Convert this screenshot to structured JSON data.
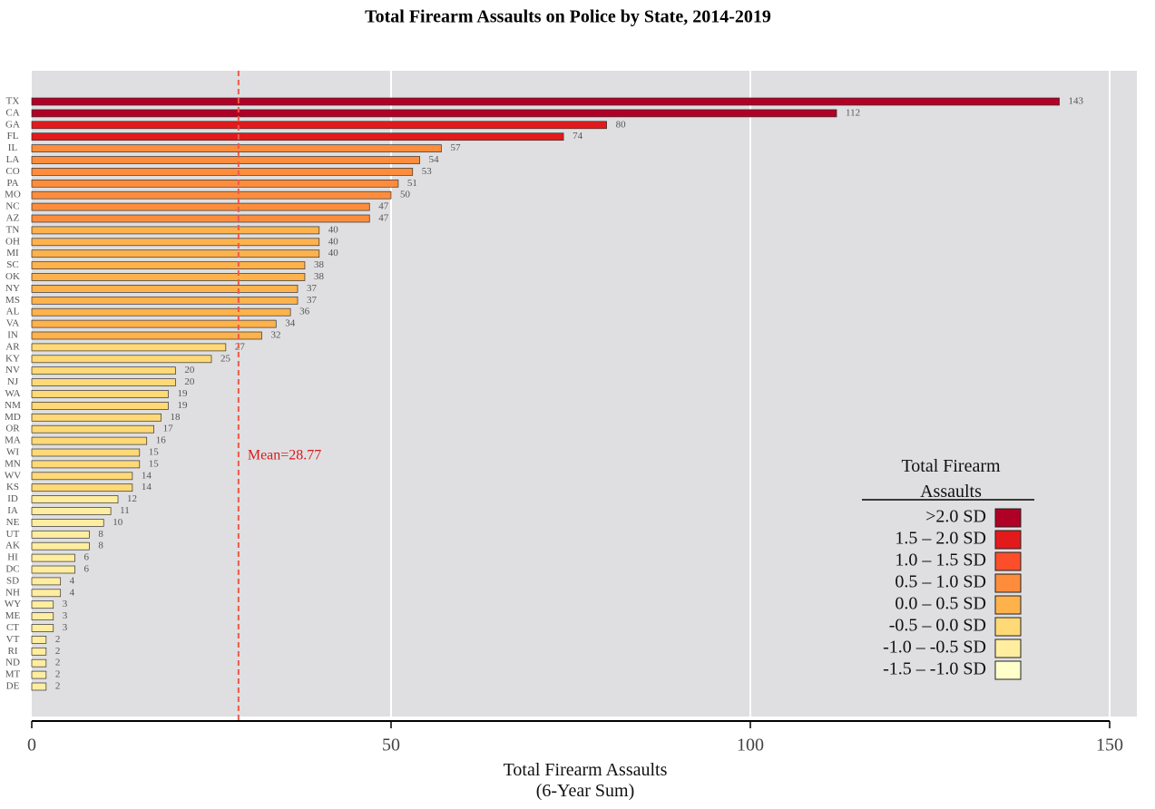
{
  "chart_data": {
    "type": "barh",
    "title": "Total Firearm Assaults on Police by State, 2014-2019",
    "xlabel": "Total Firearm Assaults\n(6-Year Sum)",
    "categories": [
      "TX",
      "CA",
      "GA",
      "FL",
      "IL",
      "LA",
      "CO",
      "PA",
      "MO",
      "NC",
      "AZ",
      "TN",
      "OH",
      "MI",
      "SC",
      "OK",
      "NY",
      "MS",
      "AL",
      "VA",
      "IN",
      "AR",
      "KY",
      "NV",
      "NJ",
      "WA",
      "NM",
      "MD",
      "OR",
      "MA",
      "WI",
      "MN",
      "WV",
      "KS",
      "ID",
      "IA",
      "NE",
      "UT",
      "AK",
      "HI",
      "DC",
      "SD",
      "NH",
      "WY",
      "ME",
      "CT",
      "VT",
      "RI",
      "ND",
      "MT",
      "DE"
    ],
    "values": [
      143,
      112,
      80,
      74,
      57,
      54,
      53,
      51,
      50,
      47,
      47,
      40,
      40,
      40,
      38,
      38,
      37,
      37,
      36,
      34,
      32,
      27,
      25,
      20,
      20,
      19,
      19,
      18,
      17,
      16,
      15,
      15,
      14,
      14,
      12,
      11,
      10,
      8,
      8,
      6,
      6,
      4,
      4,
      3,
      3,
      3,
      2,
      2,
      2,
      2,
      2
    ],
    "colors": [
      "#b10026",
      "#b10026",
      "#e31a1c",
      "#e31a1c",
      "#fd8d3c",
      "#fd8d3c",
      "#fd8d3c",
      "#fd8d3c",
      "#fd8d3c",
      "#fd8d3c",
      "#fd8d3c",
      "#feb24c",
      "#feb24c",
      "#feb24c",
      "#feb24c",
      "#feb24c",
      "#feb24c",
      "#feb24c",
      "#feb24c",
      "#feb24c",
      "#feb24c",
      "#fed976",
      "#fed976",
      "#fed976",
      "#fed976",
      "#fed976",
      "#fed976",
      "#fed976",
      "#fed976",
      "#fed976",
      "#fed976",
      "#fed976",
      "#fed976",
      "#fed976",
      "#ffeda0",
      "#ffeda0",
      "#ffeda0",
      "#ffeda0",
      "#ffeda0",
      "#ffeda0",
      "#ffeda0",
      "#ffeda0",
      "#ffeda0",
      "#ffeda0",
      "#ffeda0",
      "#ffeda0",
      "#ffeda0",
      "#ffeda0",
      "#ffeda0",
      "#ffeda0",
      "#ffeda0"
    ],
    "xlim": [
      0,
      150
    ],
    "xticks": [
      0,
      50,
      100,
      150
    ],
    "grid": true,
    "mean": 28.77,
    "annotation": "Mean=28.77",
    "legend": {
      "title": "Total Firearm\nAssaults",
      "position": "lower right",
      "items": [
        {
          "label": ">2.0 SD",
          "color": "#b10026"
        },
        {
          "label": "1.5 – 2.0 SD",
          "color": "#e31a1c"
        },
        {
          "label": "1.0 – 1.5 SD",
          "color": "#fc4e2a"
        },
        {
          "label": "0.5 – 1.0 SD",
          "color": "#fd8d3c"
        },
        {
          "label": "0.0 – 0.5 SD",
          "color": "#feb24c"
        },
        {
          "label": "-0.5 – 0.0 SD",
          "color": "#fed976"
        },
        {
          "label": "-1.0 – -0.5 SD",
          "color": "#ffeda0"
        },
        {
          "label": "-1.5 – -1.0 SD",
          "color": "#ffffcc"
        }
      ]
    }
  }
}
